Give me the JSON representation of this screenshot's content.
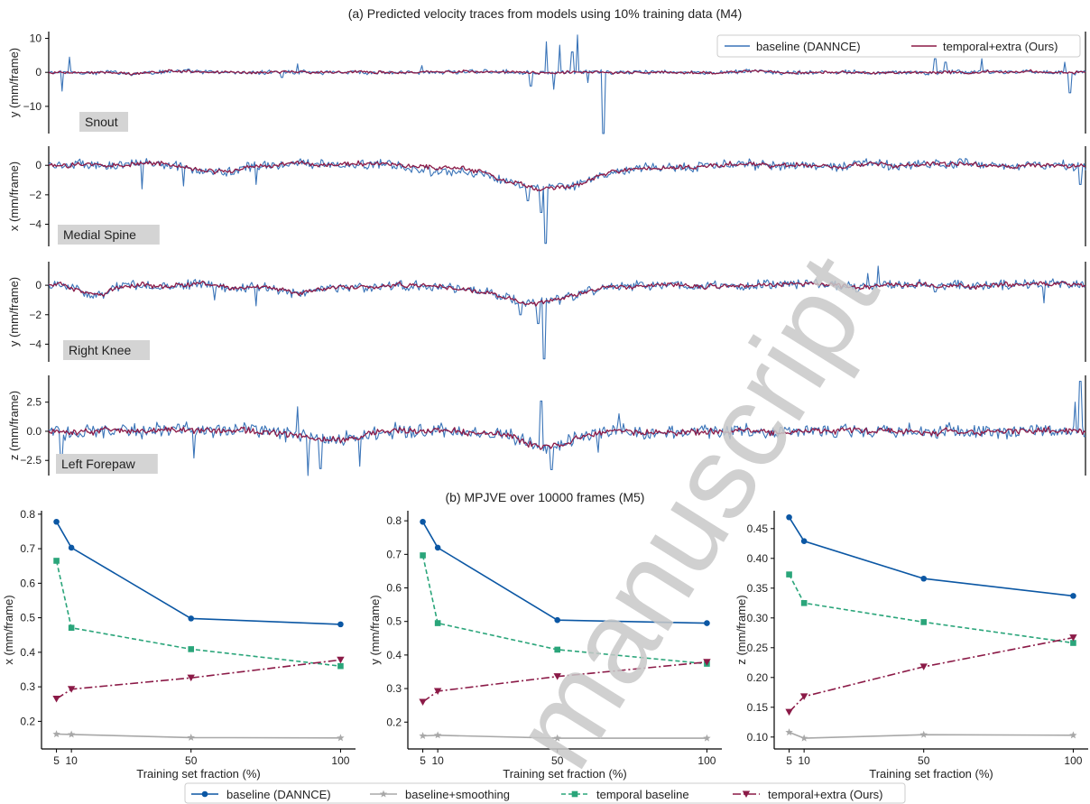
{
  "section_a_title": "(a) Predicted velocity traces from models using 10% training data (M4)",
  "section_b_title": "(b) MPJVE over 10000 frames (M5)",
  "watermark": "manuscript",
  "colors": {
    "baseline": "#0b57a4",
    "baseline_trace": "#3a74b8",
    "smoothing": "#a8a8a8",
    "temporal": "#2aa57a",
    "extra": "#8b1a47",
    "label_box": "#d4d4d4",
    "watermark": "#c8c8c8"
  },
  "chart_data": [
    {
      "type": "line",
      "id": "trace-snout",
      "label": "Snout",
      "ylabel": "y (mm/frame)",
      "ylim": [
        -18,
        12
      ],
      "yticks": [
        -10,
        0,
        10
      ],
      "legend": {
        "position": "top-right",
        "entries": [
          "baseline (DANNCE)",
          "temporal+extra (Ours)"
        ]
      },
      "series": [
        {
          "name": "baseline (DANNCE)",
          "noise": 0.55,
          "spikes": [
            [
              0.02,
              4.5
            ],
            [
              0.013,
              -5.5
            ],
            [
              0.225,
              -1.5
            ],
            [
              0.465,
              -4
            ],
            [
              0.48,
              9
            ],
            [
              0.493,
              8
            ],
            [
              0.505,
              6
            ],
            [
              0.487,
              -5
            ],
            [
              0.51,
              11
            ],
            [
              0.52,
              -3
            ],
            [
              0.535,
              -18
            ],
            [
              0.855,
              4
            ],
            [
              0.865,
              3
            ],
            [
              0.9,
              4
            ],
            [
              0.985,
              -6
            ],
            [
              0.98,
              3
            ],
            [
              0.24,
              2.5
            ],
            [
              0.36,
              2
            ]
          ]
        },
        {
          "name": "temporal+extra (Ours)",
          "noise": 0.3
        }
      ]
    },
    {
      "type": "line",
      "id": "trace-medial-spine",
      "label": "Medial Spine",
      "ylabel": "x (mm/frame)",
      "ylim": [
        -5.5,
        1.3
      ],
      "yticks": [
        -4,
        -2,
        0
      ],
      "series": [
        {
          "name": "baseline (DANNCE)",
          "noise": 0.28,
          "dips": [
            [
              0.48,
              0.06,
              -1.6
            ],
            [
              0.16,
              0.03,
              -0.4
            ],
            [
              0.38,
              0.04,
              -0.3
            ]
          ],
          "spikes": [
            [
              0.479,
              -5.3
            ],
            [
              0.475,
              -3.2
            ],
            [
              0.462,
              -2.4
            ],
            [
              0.09,
              -1.6
            ],
            [
              0.13,
              -1.4
            ],
            [
              0.2,
              -1.3
            ],
            [
              0.995,
              -1.3
            ]
          ]
        },
        {
          "name": "temporal+extra (Ours)",
          "noise": 0.12,
          "dips": [
            [
              0.48,
              0.06,
              -1.6
            ],
            [
              0.16,
              0.03,
              -0.4
            ]
          ]
        }
      ]
    },
    {
      "type": "line",
      "id": "trace-right-knee",
      "label": "Right Knee",
      "ylabel": "y (mm/frame)",
      "ylim": [
        -5.2,
        1.6
      ],
      "yticks": [
        -4,
        -2,
        0
      ],
      "series": [
        {
          "name": "baseline (DANNCE)",
          "noise": 0.28,
          "dips": [
            [
              0.47,
              0.05,
              -1.3
            ],
            [
              0.24,
              0.03,
              -0.5
            ],
            [
              0.045,
              0.02,
              -0.6
            ]
          ],
          "spikes": [
            [
              0.478,
              -5
            ],
            [
              0.472,
              -2.6
            ],
            [
              0.455,
              -2
            ],
            [
              0.8,
              1.3
            ],
            [
              0.79,
              0.8
            ],
            [
              0.96,
              -1.2
            ],
            [
              0.2,
              -1.4
            ],
            [
              0.16,
              -1
            ]
          ]
        },
        {
          "name": "temporal+extra (Ours)",
          "noise": 0.12,
          "dips": [
            [
              0.47,
              0.05,
              -1.3
            ],
            [
              0.24,
              0.03,
              -0.5
            ],
            [
              0.045,
              0.02,
              -0.6
            ]
          ]
        }
      ]
    },
    {
      "type": "line",
      "id": "trace-left-forepaw",
      "label": "Left Forepaw",
      "ylabel": "z (mm/frame)",
      "ylim": [
        -3.8,
        4.8
      ],
      "yticks": [
        -2.5,
        0.0,
        2.5
      ],
      "series": [
        {
          "name": "baseline (DANNCE)",
          "noise": 0.55,
          "dips": [
            [
              0.27,
              0.04,
              -0.8
            ],
            [
              0.48,
              0.035,
              -1.3
            ]
          ],
          "spikes": [
            [
              0.995,
              4.3
            ],
            [
              0.99,
              2.5
            ],
            [
              0.24,
              2.1
            ],
            [
              0.25,
              -3.8
            ],
            [
              0.262,
              -3.2
            ],
            [
              0.475,
              2.6
            ],
            [
              0.485,
              -3.3
            ],
            [
              0.012,
              -2.5
            ],
            [
              0.14,
              -2.3
            ],
            [
              0.3,
              -3
            ],
            [
              0.55,
              1.5
            ],
            [
              0.53,
              -1.8
            ]
          ]
        },
        {
          "name": "temporal+extra (Ours)",
          "noise": 0.22,
          "dips": [
            [
              0.27,
              0.04,
              -0.8
            ],
            [
              0.48,
              0.035,
              -1.3
            ]
          ]
        }
      ]
    },
    {
      "type": "line",
      "id": "mpjve-x",
      "xlabel": "Training set fraction (%)",
      "ylabel": "x (mm/frame)",
      "xlim": [
        0,
        105
      ],
      "ylim": [
        0.12,
        0.81
      ],
      "xticks": [
        5,
        10,
        50,
        100
      ],
      "yticks": [
        0.2,
        0.3,
        0.4,
        0.5,
        0.6,
        0.7,
        0.8
      ],
      "ytick_labels": [
        "0.2",
        "0.3",
        "0.4",
        "0.5",
        "0.6",
        "0.7",
        "0.8"
      ],
      "x": [
        5,
        10,
        50,
        100
      ],
      "series": [
        {
          "name": "baseline (DANNCE)",
          "values": [
            0.778,
            0.703,
            0.498,
            0.481
          ]
        },
        {
          "name": "baseline+smoothing",
          "values": [
            0.163,
            0.162,
            0.153,
            0.152
          ]
        },
        {
          "name": "temporal baseline",
          "values": [
            0.665,
            0.471,
            0.409,
            0.36
          ]
        },
        {
          "name": "temporal+extra (Ours)",
          "values": [
            0.265,
            0.293,
            0.326,
            0.378
          ]
        }
      ]
    },
    {
      "type": "line",
      "id": "mpjve-y",
      "xlabel": "Training set fraction (%)",
      "ylabel": "y (mm/frame)",
      "xlim": [
        0,
        105
      ],
      "ylim": [
        0.12,
        0.83
      ],
      "xticks": [
        5,
        10,
        50,
        100
      ],
      "yticks": [
        0.2,
        0.3,
        0.4,
        0.5,
        0.6,
        0.7,
        0.8
      ],
      "ytick_labels": [
        "0.2",
        "0.3",
        "0.4",
        "0.5",
        "0.6",
        "0.7",
        "0.8"
      ],
      "x": [
        5,
        10,
        50,
        100
      ],
      "series": [
        {
          "name": "baseline (DANNCE)",
          "values": [
            0.797,
            0.72,
            0.504,
            0.495
          ]
        },
        {
          "name": "baseline+smoothing",
          "values": [
            0.159,
            0.161,
            0.152,
            0.152
          ]
        },
        {
          "name": "temporal baseline",
          "values": [
            0.697,
            0.495,
            0.416,
            0.374
          ]
        },
        {
          "name": "temporal+extra (Ours)",
          "values": [
            0.26,
            0.292,
            0.336,
            0.379
          ]
        }
      ]
    },
    {
      "type": "line",
      "id": "mpjve-z",
      "xlabel": "Training set fraction (%)",
      "ylabel": "z (mm/frame)",
      "xlim": [
        0,
        105
      ],
      "ylim": [
        0.08,
        0.48
      ],
      "xticks": [
        5,
        10,
        50,
        100
      ],
      "yticks": [
        0.1,
        0.15,
        0.2,
        0.25,
        0.3,
        0.35,
        0.4,
        0.45
      ],
      "ytick_labels": [
        "0.10",
        "0.15",
        "0.20",
        "0.25",
        "0.30",
        "0.35",
        "0.40",
        "0.45"
      ],
      "x": [
        5,
        10,
        50,
        100
      ],
      "series": [
        {
          "name": "baseline (DANNCE)",
          "values": [
            0.469,
            0.429,
            0.366,
            0.337
          ]
        },
        {
          "name": "baseline+smoothing",
          "values": [
            0.108,
            0.098,
            0.104,
            0.103
          ]
        },
        {
          "name": "temporal baseline",
          "values": [
            0.373,
            0.325,
            0.293,
            0.258
          ]
        },
        {
          "name": "temporal+extra (Ours)",
          "values": [
            0.142,
            0.168,
            0.218,
            0.267
          ]
        }
      ]
    }
  ],
  "bottom_legend": [
    {
      "label": "baseline (DANNCE)",
      "style": "solid",
      "marker": "circle",
      "color_key": "baseline"
    },
    {
      "label": "baseline+smoothing",
      "style": "solid",
      "marker": "star",
      "color_key": "smoothing"
    },
    {
      "label": "temporal baseline",
      "style": "dashed",
      "marker": "square",
      "color_key": "temporal"
    },
    {
      "label": "temporal+extra (Ours)",
      "style": "dashdot",
      "marker": "triangle-down",
      "color_key": "extra"
    }
  ]
}
